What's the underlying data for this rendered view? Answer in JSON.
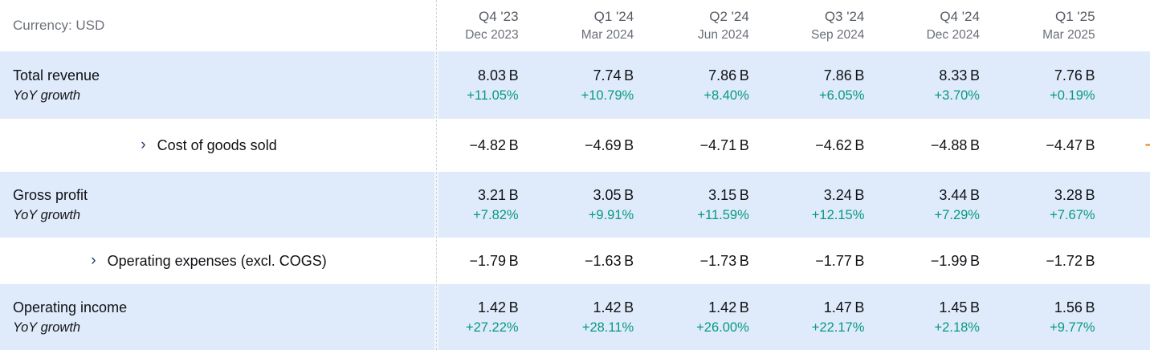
{
  "header": {
    "currency_label": "Currency: USD",
    "columns": [
      {
        "quarter": "Q4 '23",
        "date": "Dec 2023"
      },
      {
        "quarter": "Q1 '24",
        "date": "Mar 2024"
      },
      {
        "quarter": "Q2 '24",
        "date": "Jun 2024"
      },
      {
        "quarter": "Q3 '24",
        "date": "Sep 2024"
      },
      {
        "quarter": "Q4 '24",
        "date": "Dec 2024"
      },
      {
        "quarter": "Q1 '25",
        "date": "Mar 2025"
      }
    ]
  },
  "rows": [
    {
      "label": "Total revenue",
      "sub_label": "YoY growth",
      "highlighted": true,
      "expandable": false,
      "values": [
        "8.03 B",
        "7.74 B",
        "7.86 B",
        "7.86 B",
        "8.33 B",
        "7.76 B"
      ],
      "growth": [
        "+11.05%",
        "+10.79%",
        "+8.40%",
        "+6.05%",
        "+3.70%",
        "+0.19%"
      ]
    },
    {
      "label": "Cost of goods sold",
      "highlighted": false,
      "expandable": true,
      "values": [
        "−4.82 B",
        "−4.69 B",
        "−4.71 B",
        "−4.62 B",
        "−4.88 B",
        "−4.47 B"
      ]
    },
    {
      "label": "Gross profit",
      "sub_label": "YoY growth",
      "highlighted": true,
      "expandable": false,
      "values": [
        "3.21 B",
        "3.05 B",
        "3.15 B",
        "3.24 B",
        "3.44 B",
        "3.28 B"
      ],
      "growth": [
        "+7.82%",
        "+9.91%",
        "+11.59%",
        "+12.15%",
        "+7.29%",
        "+7.67%"
      ]
    },
    {
      "label": "Operating expenses (excl. COGS)",
      "highlighted": false,
      "expandable": true,
      "values": [
        "−1.79 B",
        "−1.63 B",
        "−1.73 B",
        "−1.77 B",
        "−1.99 B",
        "−1.72 B"
      ]
    },
    {
      "label": "Operating income",
      "sub_label": "YoY growth",
      "highlighted": true,
      "expandable": false,
      "values": [
        "1.42 B",
        "1.42 B",
        "1.42 B",
        "1.47 B",
        "1.45 B",
        "1.56 B"
      ],
      "growth": [
        "+27.22%",
        "+28.11%",
        "+26.00%",
        "+22.17%",
        "+2.18%",
        "+9.77%"
      ]
    }
  ],
  "icons": {
    "expand_chevron": "›"
  },
  "clipped_next_column_fragment": "−",
  "colors": {
    "highlight_row_bg": "#dfebfa",
    "growth_positive": "#089981",
    "value_text": "#101216",
    "header_text": "#565b64",
    "chevron_blue": "#1b3a6b",
    "clipped_fragment_orange": "#e8830c"
  }
}
